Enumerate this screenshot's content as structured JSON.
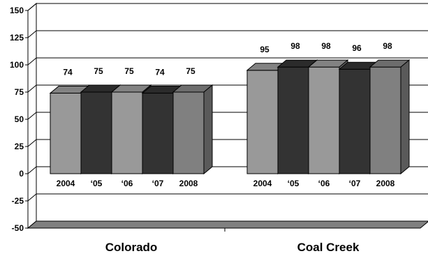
{
  "chart_data": {
    "type": "bar",
    "title": "",
    "xlabel": "",
    "ylabel": "",
    "ylim": [
      -50,
      150
    ],
    "y_ticks": [
      150,
      125,
      100,
      75,
      50,
      25,
      0,
      -25,
      -50
    ],
    "grid": true,
    "three_d": true,
    "groups": [
      {
        "name": "Colorado",
        "categories": [
          "2004",
          "‘05",
          "‘06",
          "‘07",
          "2008"
        ],
        "values": [
          74,
          75,
          75,
          74,
          75
        ]
      },
      {
        "name": "Coal Creek",
        "categories": [
          "2004",
          "‘05",
          "‘06",
          "‘07",
          "2008"
        ],
        "values": [
          95,
          98,
          98,
          96,
          98
        ]
      }
    ],
    "bar_colors": [
      "#999999",
      "#333333",
      "#999999",
      "#333333",
      "#808080"
    ]
  }
}
